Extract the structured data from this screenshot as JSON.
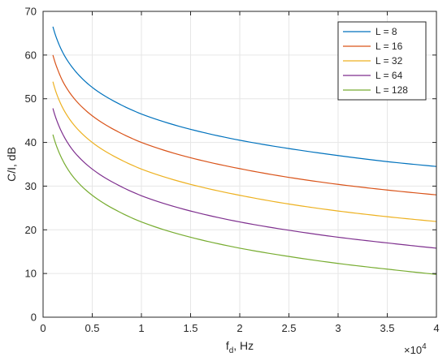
{
  "chart_data": {
    "type": "line",
    "xlabel_main": "f",
    "xlabel_sub": "d",
    "xlabel_unit": ", Hz",
    "ylabel": "C/I, dB",
    "x_multiplier_base": "×10",
    "x_multiplier_exp": "4",
    "xlim": [
      0,
      4
    ],
    "ylim": [
      0,
      70
    ],
    "x_ticks": [
      0,
      0.5,
      1,
      1.5,
      2,
      2.5,
      3,
      3.5,
      4
    ],
    "x_tick_labels": [
      "0",
      "0.5",
      "1",
      "1.5",
      "2",
      "2.5",
      "3",
      "3.5",
      "4"
    ],
    "y_ticks": [
      0,
      10,
      20,
      30,
      40,
      50,
      60,
      70
    ],
    "y_tick_labels": [
      "0",
      "10",
      "20",
      "30",
      "40",
      "50",
      "60",
      "70"
    ],
    "grid": true,
    "legend_position": "top-right",
    "x": [
      0.1,
      0.15,
      0.2,
      0.3,
      0.5,
      0.75,
      1,
      1.5,
      2,
      2.5,
      3,
      3.5,
      4
    ],
    "series": [
      {
        "name": "L = 8",
        "color": "#0072BD",
        "values": [
          66.5,
          63.1,
          60.6,
          57.1,
          52.6,
          49.1,
          46.5,
          43.0,
          40.5,
          38.6,
          37.0,
          35.6,
          34.5
        ]
      },
      {
        "name": "L = 16",
        "color": "#D95319",
        "values": [
          60.0,
          56.6,
          54.0,
          50.5,
          46.1,
          42.6,
          40.0,
          36.5,
          34.0,
          32.0,
          30.4,
          29.1,
          28.0
        ]
      },
      {
        "name": "L = 32",
        "color": "#EDB120",
        "values": [
          53.9,
          50.4,
          47.9,
          44.4,
          40.0,
          36.5,
          33.9,
          30.4,
          27.9,
          25.9,
          24.3,
          23.0,
          21.9
        ]
      },
      {
        "name": "L = 64",
        "color": "#7E2F8E",
        "values": [
          47.8,
          44.4,
          41.9,
          38.3,
          33.9,
          30.4,
          27.8,
          24.3,
          21.8,
          19.9,
          18.3,
          17.0,
          15.8
        ]
      },
      {
        "name": "L = 128",
        "color": "#77AC30",
        "values": [
          41.8,
          38.4,
          35.9,
          32.3,
          27.9,
          24.4,
          21.8,
          18.3,
          15.8,
          13.9,
          12.3,
          11.0,
          9.8
        ]
      }
    ]
  }
}
